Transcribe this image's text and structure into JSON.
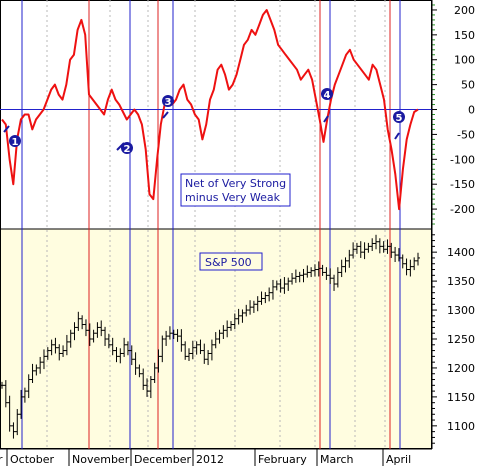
{
  "chart_data": [
    {
      "type": "line",
      "annotation": [
        "Net of Very Strong",
        "minus Very Weak"
      ],
      "ylim": [
        -240,
        220
      ],
      "yticks": [
        200,
        150,
        100,
        50,
        0,
        -50,
        -100,
        -150,
        -200
      ],
      "zero_line_color": "#2222cc",
      "series": [
        {
          "color": "#ee1111",
          "values": [
            -20,
            -30,
            -100,
            -150,
            -60,
            -20,
            -10,
            -10,
            -40,
            -20,
            -10,
            0,
            20,
            40,
            50,
            30,
            20,
            50,
            100,
            110,
            160,
            180,
            150,
            30,
            20,
            10,
            0,
            -10,
            20,
            40,
            20,
            10,
            -5,
            -20,
            -10,
            0,
            -10,
            -30,
            -80,
            -170,
            -180,
            -100,
            -30,
            10,
            20,
            10,
            20,
            40,
            50,
            20,
            10,
            -10,
            -20,
            -60,
            -30,
            20,
            40,
            80,
            90,
            70,
            40,
            50,
            70,
            100,
            130,
            140,
            160,
            150,
            170,
            190,
            200,
            180,
            160,
            130,
            120,
            110,
            100,
            90,
            80,
            60,
            70,
            80,
            60,
            20,
            -20,
            -65,
            -20,
            20,
            50,
            70,
            90,
            110,
            120,
            100,
            90,
            80,
            70,
            60,
            90,
            80,
            50,
            20,
            -40,
            -80,
            -130,
            -200,
            -120,
            -60,
            -30,
            -5,
            0
          ]
        }
      ],
      "markers": [
        "1",
        "2",
        "3",
        "4",
        "5"
      ],
      "grid": "dotted vertical"
    },
    {
      "type": "ohlc",
      "annotation": "S&P 500",
      "ylim": [
        1060,
        1440
      ],
      "yticks": [
        1400,
        1350,
        1300,
        1250,
        1200,
        1150,
        1100
      ],
      "values": [
        1170,
        1140,
        1100,
        1090,
        1120,
        1150,
        1160,
        1180,
        1195,
        1200,
        1210,
        1220,
        1230,
        1240,
        1235,
        1225,
        1230,
        1245,
        1260,
        1270,
        1285,
        1275,
        1265,
        1250,
        1260,
        1270,
        1265,
        1250,
        1240,
        1230,
        1220,
        1225,
        1240,
        1230,
        1215,
        1200,
        1190,
        1170,
        1160,
        1180,
        1200,
        1220,
        1250,
        1255,
        1260,
        1258,
        1255,
        1240,
        1220,
        1225,
        1235,
        1240,
        1230,
        1215,
        1225,
        1240,
        1250,
        1260,
        1265,
        1270,
        1275,
        1285,
        1290,
        1295,
        1300,
        1305,
        1310,
        1315,
        1320,
        1325,
        1330,
        1340,
        1345,
        1338,
        1345,
        1350,
        1355,
        1358,
        1360,
        1362,
        1365,
        1368,
        1370,
        1372,
        1365,
        1360,
        1355,
        1345,
        1365,
        1375,
        1385,
        1395,
        1405,
        1410,
        1400,
        1405,
        1410,
        1415,
        1418,
        1410,
        1405,
        1410,
        1400,
        1395,
        1390,
        1380,
        1370,
        1375,
        1385,
        1390
      ],
      "background": "#fffde0"
    }
  ],
  "x_axis": {
    "labels": [
      "r",
      "October",
      "November",
      "December",
      "2012",
      "February",
      "March",
      "April"
    ]
  },
  "vertical_lines": {
    "blue": [
      22,
      130,
      173,
      330,
      400
    ],
    "red": [
      89,
      158,
      320,
      390
    ]
  },
  "colors": {
    "blue_line": "#2020cc",
    "red_line": "#dd2020",
    "price_bg": "#fffde0",
    "top_bg": "#ffffff"
  }
}
